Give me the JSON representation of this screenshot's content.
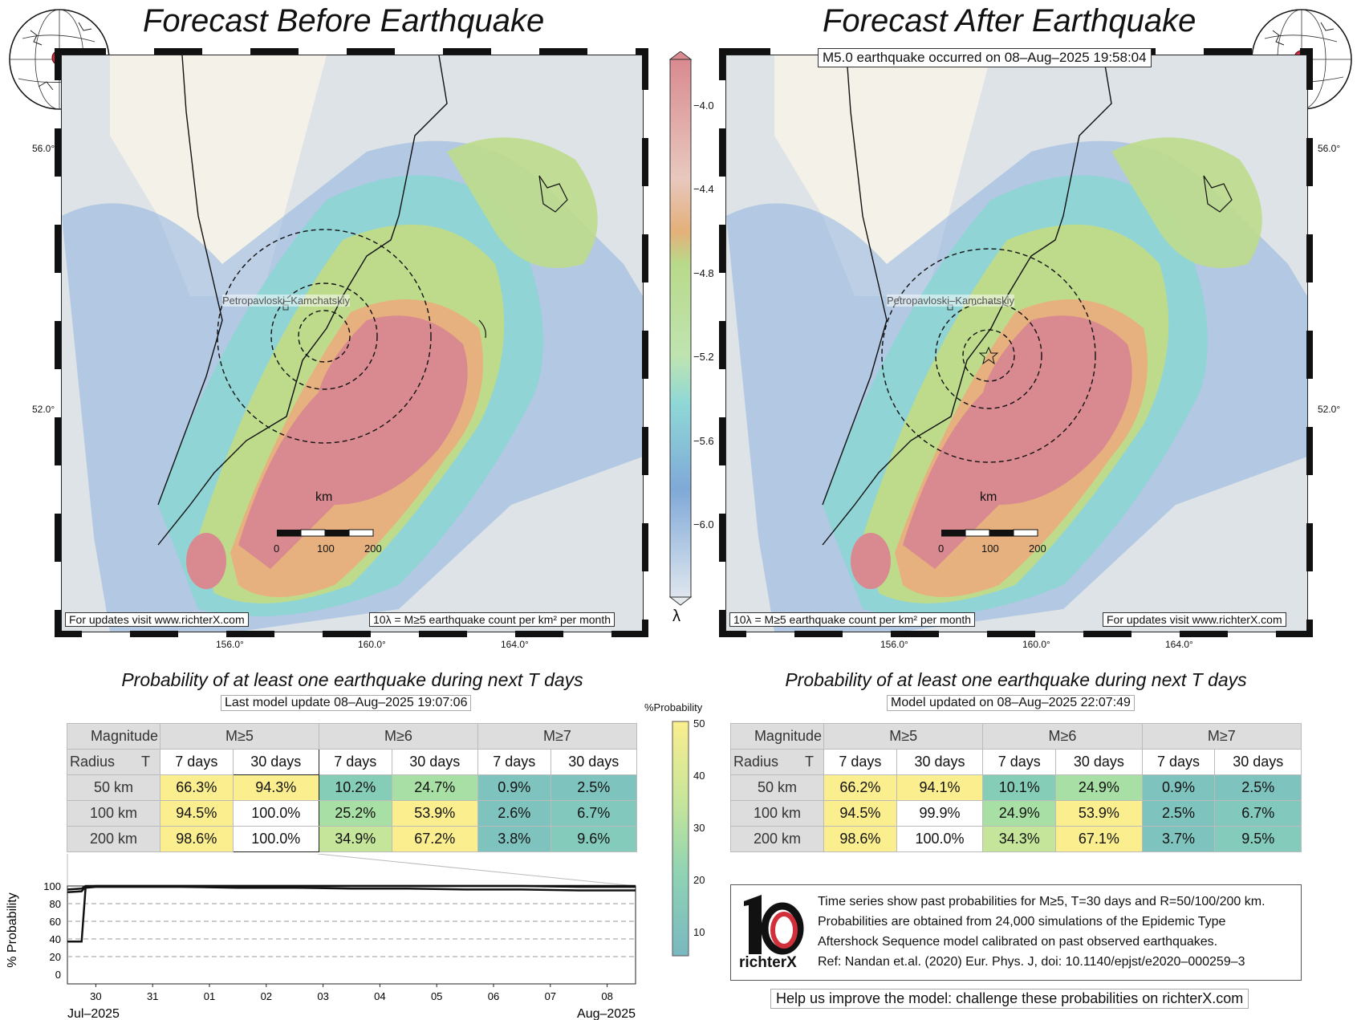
{
  "left_panel": {
    "title": "Forecast Before Earthquake",
    "city_label": "Petropavloski–Kamchatskiy",
    "lat_labels": [
      "56.0°",
      "52.0°"
    ],
    "lon_labels": [
      "156.0°",
      "160.0°",
      "164.0°"
    ],
    "footer_left": "For updates visit www.richterX.com",
    "footer_right": "10λ = M≥5 earthquake count per km² per month",
    "scale": {
      "unit": "km",
      "labels": [
        "0",
        "100",
        "200"
      ]
    }
  },
  "right_panel": {
    "title": "Forecast After Earthquake",
    "event_banner": "M5.0 earthquake occurred on 08–Aug–2025 19:58:04",
    "city_label": "Petropavloski–Kamchatskiy",
    "lat_labels": [
      "56.0°",
      "52.0°"
    ],
    "lon_labels": [
      "156.0°",
      "160.0°",
      "164.0°"
    ],
    "footer_left": "10λ = M≥5 earthquake count per km² per month",
    "footer_right": "For updates visit www.richterX.com",
    "scale": {
      "unit": "km",
      "labels": [
        "0",
        "100",
        "200"
      ]
    }
  },
  "colorbar": {
    "symbol": "λ",
    "ticks": [
      "−4.0",
      "−4.4",
      "−4.8",
      "−5.2",
      "−5.6",
      "−6.0"
    ]
  },
  "prob_colorbar": {
    "label": "%Probability",
    "ticks": [
      "50",
      "40",
      "30",
      "20",
      "10"
    ]
  },
  "left_table": {
    "title": "Probability of at least one earthquake during next T days",
    "update": "Last model update 08–Aug–2025 19:07:06",
    "corner_top": "Magnitude",
    "corner_bottom_left": "Radius",
    "corner_bottom_right": "T",
    "magnitudes": [
      "M≥5",
      "M≥6",
      "M≥7"
    ],
    "periods": [
      "7 days",
      "30 days",
      "7 days",
      "30 days",
      "7 days",
      "30 days"
    ],
    "rows": [
      {
        "radius": "50 km",
        "values": [
          "66.3%",
          "94.3%",
          "10.2%",
          "24.7%",
          "0.9%",
          "2.5%"
        ]
      },
      {
        "radius": "100 km",
        "values": [
          "94.5%",
          "100.0%",
          "25.2%",
          "53.9%",
          "2.6%",
          "6.7%"
        ]
      },
      {
        "radius": "200 km",
        "values": [
          "98.6%",
          "100.0%",
          "34.9%",
          "67.2%",
          "3.8%",
          "9.6%"
        ]
      }
    ]
  },
  "right_table": {
    "title": "Probability of at least one earthquake during next T days",
    "update": "Model updated on 08–Aug–2025 22:07:49",
    "corner_top": "Magnitude",
    "corner_bottom_left": "Radius",
    "corner_bottom_right": "T",
    "magnitudes": [
      "M≥5",
      "M≥6",
      "M≥7"
    ],
    "periods": [
      "7 days",
      "30 days",
      "7 days",
      "30 days",
      "7 days",
      "30 days"
    ],
    "rows": [
      {
        "radius": "50 km",
        "values": [
          "66.2%",
          "94.1%",
          "10.1%",
          "24.9%",
          "0.9%",
          "2.5%"
        ]
      },
      {
        "radius": "100 km",
        "values": [
          "94.5%",
          "99.9%",
          "24.9%",
          "53.9%",
          "2.5%",
          "6.7%"
        ]
      },
      {
        "radius": "200 km",
        "values": [
          "98.6%",
          "100.0%",
          "34.3%",
          "67.1%",
          "3.7%",
          "9.5%"
        ]
      }
    ]
  },
  "chart_data": {
    "type": "line",
    "title": "",
    "xlabel": "",
    "ylabel": "% Probability",
    "ylim": [
      0,
      100
    ],
    "yticks": [
      "100",
      "80",
      "60",
      "40",
      "20",
      "0"
    ],
    "xticks": [
      "30",
      "31",
      "01",
      "02",
      "03",
      "04",
      "05",
      "06",
      "07",
      "08"
    ],
    "x_month_left": "Jul–2025",
    "x_month_right": "Aug–2025",
    "grid": true,
    "series": [
      {
        "x": [
          0,
          0.25,
          0.32,
          0.5,
          1,
          2,
          3,
          4,
          5,
          6,
          7,
          8,
          9,
          10
        ],
        "values": [
          37,
          37,
          98,
          99,
          99,
          99,
          98,
          98,
          97,
          97,
          96,
          96,
          95,
          95
        ]
      },
      {
        "x": [
          0,
          0.25,
          0.32,
          0.5,
          1,
          2,
          3,
          4,
          5,
          6,
          7,
          8,
          9,
          10
        ],
        "values": [
          93,
          94,
          99,
          100,
          100,
          100,
          100,
          100,
          100,
          100,
          100,
          100,
          99,
          99
        ]
      },
      {
        "x": [
          0,
          0.25,
          0.32,
          0.5,
          1,
          2,
          3,
          4,
          5,
          6,
          7,
          8,
          9,
          10
        ],
        "values": [
          96,
          97,
          100,
          100,
          100,
          100,
          100,
          100,
          100,
          100,
          100,
          100,
          100,
          100
        ]
      }
    ]
  },
  "info": {
    "logo_text": "richterX",
    "lines": [
      "Time series show past probabilities for M≥5, T=30 days and R=50/100/200 km.",
      "Probabilities are obtained from 24,000 simulations of the Epidemic Type",
      "Aftershock Sequence model calibrated on past observed earthquakes.",
      "Ref: Nandan et.al. (2020) Eur. Phys. J, doi: 10.1140/epjst/e2020–000259–3"
    ],
    "help": "Help us improve the model: challenge these probabilities on richterX.com"
  },
  "colors": {
    "high": "#d9888c",
    "orange": "#e4b07a",
    "green": "#b9d98a",
    "teal": "#8fd8d6",
    "blue": "#7fa9d8",
    "cell_yellow": "#fbee8f",
    "cell_green": "#a8dfa4",
    "cell_teal": "#7fc3bf"
  }
}
